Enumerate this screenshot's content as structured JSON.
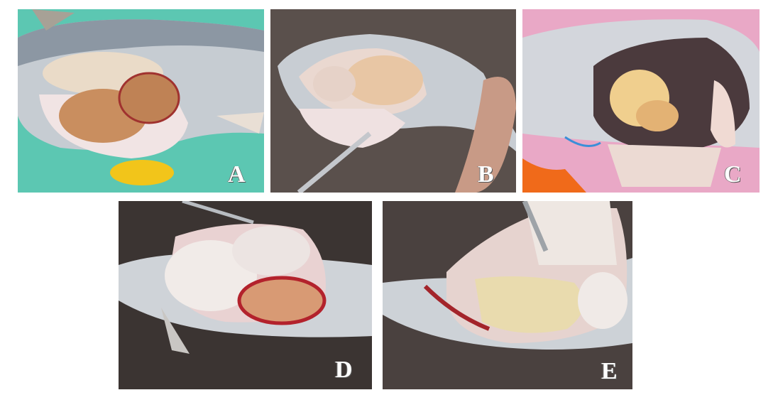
{
  "panels": [
    {
      "label": "A"
    },
    {
      "label": "B"
    },
    {
      "label": "C"
    },
    {
      "label": "D"
    },
    {
      "label": "E"
    }
  ],
  "icons": [
    "fish-photo",
    "ovary",
    "dissecting-probe",
    "forceps"
  ],
  "colors": {
    "background": "#ffffff",
    "label": "#ffffff",
    "fish_skin": "#c9ced3",
    "ovary_orange": "#c98a5a",
    "ovary_cream": "#e8d6a0",
    "blood": "#b0202a"
  }
}
